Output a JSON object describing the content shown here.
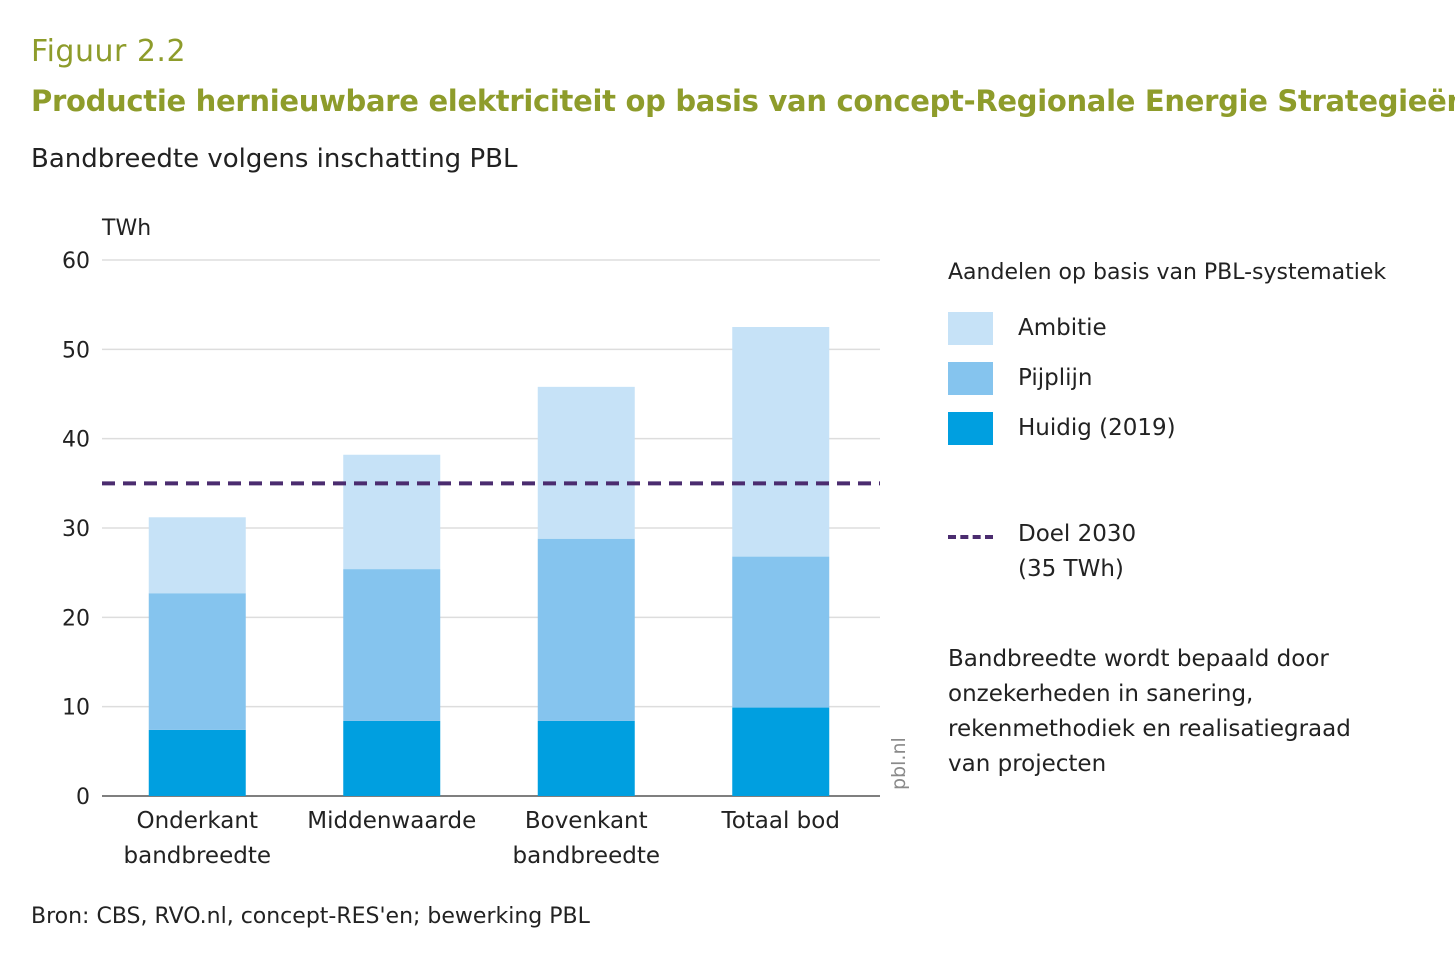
{
  "header": {
    "figure_label": "Figuur 2.2",
    "title": "Productie hernieuwbare elektriciteit op basis van concept-Regionale Energie Strategieën",
    "subtitle": "Bandbreedte volgens inschatting PBL"
  },
  "legend": {
    "title": "Aandelen op basis van PBL-systematiek",
    "items": [
      {
        "label": "Ambitie",
        "color": "#c6e2f7"
      },
      {
        "label": "Pijplijn",
        "color": "#85c4ee"
      },
      {
        "label": "Huidig (2019)",
        "color": "#009fe0"
      }
    ],
    "target_line1": "Doel 2030",
    "target_line2": "(35 TWh)",
    "target_color": "#4b2c6f",
    "note": "Bandbreedte wordt bepaald door onzekerheden in sanering, rekenmethodiek en realisatiegraad van projecten"
  },
  "source": "Bron: CBS, RVO.nl, concept-RES'en; bewerking PBL",
  "watermark": "pbl.nl",
  "chart_data": {
    "type": "bar",
    "stacked": true,
    "ylabel": "TWh",
    "ylim": [
      0,
      60
    ],
    "yticks": [
      0,
      10,
      20,
      30,
      40,
      50,
      60
    ],
    "grid": true,
    "legend_position": "right",
    "categories": [
      [
        "Onderkant",
        "bandbreedte"
      ],
      [
        "Middenwaarde"
      ],
      [
        "Bovenkant",
        "bandbreedte"
      ],
      [
        "Totaal bod"
      ]
    ],
    "series": [
      {
        "name": "Huidig (2019)",
        "color": "#009fe0",
        "values": [
          7.4,
          8.4,
          8.4,
          9.9
        ]
      },
      {
        "name": "Pijplijn",
        "color": "#85c4ee",
        "values": [
          15.3,
          17.0,
          20.4,
          16.9
        ]
      },
      {
        "name": "Ambitie",
        "color": "#c6e2f7",
        "values": [
          8.5,
          12.8,
          17.0,
          25.7
        ]
      }
    ],
    "reference_line": {
      "value": 35,
      "color": "#4b2c6f",
      "style": "dashed"
    }
  }
}
